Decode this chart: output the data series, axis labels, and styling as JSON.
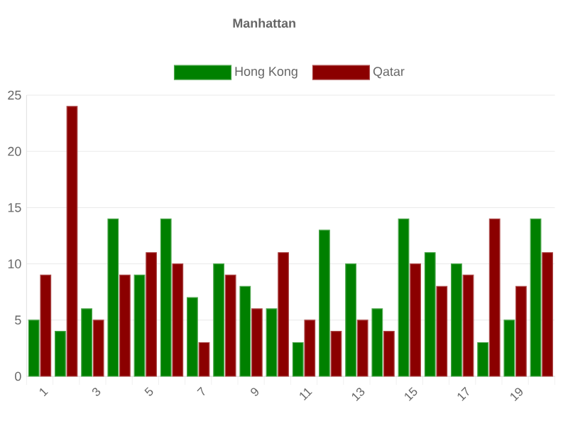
{
  "chart_data": {
    "type": "bar",
    "title": "Manhattan",
    "categories": [
      "1",
      null,
      "3",
      null,
      "5",
      null,
      "7",
      null,
      "9",
      null,
      "11",
      null,
      "13",
      null,
      "15",
      null,
      "17",
      null,
      "19",
      null
    ],
    "series": [
      {
        "name": "Hong Kong",
        "color": "#008000",
        "values": [
          5,
          4,
          6,
          14,
          9,
          14,
          7,
          10,
          8,
          6,
          3,
          13,
          10,
          6,
          14,
          11,
          10,
          3,
          5,
          14
        ]
      },
      {
        "name": "Qatar",
        "color": "#8b0000",
        "values": [
          9,
          24,
          5,
          9,
          11,
          10,
          3,
          9,
          6,
          11,
          5,
          4,
          5,
          4,
          10,
          8,
          9,
          14,
          8,
          11
        ]
      }
    ],
    "ylim": [
      0,
      25
    ],
    "yticks": [
      0,
      5,
      10,
      15,
      20,
      25
    ],
    "grid": "y",
    "legend": "top"
  }
}
